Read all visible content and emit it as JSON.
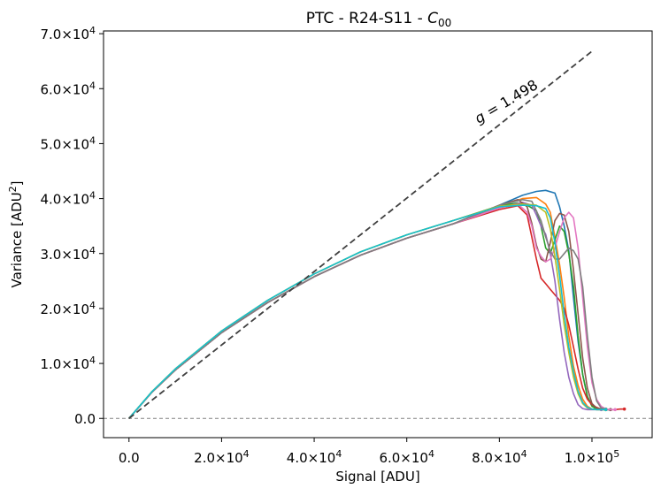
{
  "chart_data": {
    "type": "line",
    "title_parts": {
      "prefix": "PTC - R24-S11 - ",
      "var": "C",
      "sub": "00"
    },
    "xlabel": "Signal [ADU]",
    "ylabel_parts": {
      "prefix": "Variance [ADU",
      "sup": "2",
      "suffix": "]"
    },
    "xlim": [
      -5500,
      113000
    ],
    "ylim": [
      -3500,
      70500
    ],
    "x_ticks": [
      {
        "value": 0,
        "mant": "0.0",
        "exp": ""
      },
      {
        "value": 20000,
        "mant": "2.0×10",
        "exp": "4"
      },
      {
        "value": 40000,
        "mant": "4.0×10",
        "exp": "4"
      },
      {
        "value": 60000,
        "mant": "6.0×10",
        "exp": "4"
      },
      {
        "value": 80000,
        "mant": "8.0×10",
        "exp": "4"
      },
      {
        "value": 100000,
        "mant": "1.0×10",
        "exp": "5"
      }
    ],
    "y_ticks": [
      {
        "value": 0,
        "mant": "0.0",
        "exp": ""
      },
      {
        "value": 10000,
        "mant": "1.0×10",
        "exp": "4"
      },
      {
        "value": 20000,
        "mant": "2.0×10",
        "exp": "4"
      },
      {
        "value": 30000,
        "mant": "3.0×10",
        "exp": "4"
      },
      {
        "value": 40000,
        "mant": "4.0×10",
        "exp": "4"
      },
      {
        "value": 50000,
        "mant": "5.0×10",
        "exp": "4"
      },
      {
        "value": 60000,
        "mant": "6.0×10",
        "exp": "4"
      },
      {
        "value": 70000,
        "mant": "7.0×10",
        "exp": "4"
      }
    ],
    "reference_line": {
      "x": [
        0,
        100000
      ],
      "y": [
        0,
        66800
      ],
      "color": "#404040",
      "style": "dashed"
    },
    "zero_line": {
      "y": 0,
      "color": "#808080",
      "style": "dashed"
    },
    "annotation": {
      "var": "g",
      "text": " = 1.498",
      "x": 75500,
      "y": 53600,
      "rotation_deg": -31
    },
    "grid": false,
    "series": [
      {
        "color": "#1f77b4",
        "x": [
          0,
          5000,
          10000,
          20000,
          30000,
          40000,
          50000,
          60000,
          70000,
          80000,
          85000,
          88000,
          90000,
          92000,
          93000,
          94000,
          95000,
          96000,
          97000,
          98000,
          99000,
          100000,
          101000,
          102000,
          103000,
          104000
        ],
        "y": [
          0,
          4800,
          8800,
          15600,
          21100,
          25800,
          29700,
          32800,
          35400,
          38800,
          40600,
          41300,
          41500,
          41000,
          38500,
          35000,
          30500,
          22000,
          14000,
          8000,
          4000,
          2300,
          1700,
          1600,
          1600,
          1600
        ]
      },
      {
        "color": "#ff7f0e",
        "x": [
          0,
          5000,
          10000,
          20000,
          30000,
          40000,
          50000,
          60000,
          70000,
          80000,
          85000,
          88000,
          90000,
          91000,
          92000,
          93000,
          94000,
          95000,
          96000,
          97000,
          98000,
          99000,
          100000,
          101000,
          102000,
          103000
        ],
        "y": [
          0,
          4800,
          8800,
          15600,
          21100,
          25800,
          29700,
          32800,
          35400,
          38600,
          40000,
          40200,
          39000,
          37500,
          33000,
          28000,
          22000,
          15000,
          9500,
          6000,
          3500,
          2200,
          1700,
          1600,
          1600,
          1600
        ]
      },
      {
        "color": "#2ca02c",
        "x": [
          0,
          5000,
          10000,
          20000,
          30000,
          40000,
          50000,
          60000,
          70000,
          80000,
          84000,
          86000,
          88000,
          89000,
          90000,
          91000,
          92000,
          93000,
          94000,
          95000,
          96000,
          97000,
          98000,
          99000,
          100000,
          101000,
          102000,
          103000
        ],
        "y": [
          0,
          4900,
          9000,
          15900,
          21500,
          26300,
          30300,
          33400,
          36000,
          38700,
          39200,
          38800,
          37800,
          35000,
          31000,
          30000,
          32500,
          35000,
          34000,
          30000,
          24000,
          15000,
          8000,
          4000,
          2200,
          1700,
          1600,
          1600
        ]
      },
      {
        "color": "#d62728",
        "x": [
          0,
          5000,
          10000,
          20000,
          30000,
          40000,
          50000,
          60000,
          70000,
          80000,
          84000,
          86000,
          87000,
          88000,
          89000,
          90000,
          91000,
          92000,
          93000,
          94000,
          95000,
          96000,
          97000,
          98000,
          99000,
          100000,
          101000,
          102000,
          103000,
          104000,
          105000,
          106000,
          107000
        ],
        "y": [
          0,
          4800,
          8800,
          15600,
          21100,
          25800,
          29700,
          32800,
          35400,
          38000,
          38700,
          37000,
          33000,
          29000,
          25500,
          24500,
          23500,
          22500,
          21500,
          20000,
          17000,
          13000,
          9000,
          5500,
          3500,
          2500,
          2000,
          1700,
          1600,
          1600,
          1600,
          1700,
          1700
        ]
      },
      {
        "color": "#9467bd",
        "x": [
          0,
          5000,
          10000,
          20000,
          30000,
          40000,
          50000,
          60000,
          70000,
          80000,
          85000,
          87000,
          88000,
          89000,
          90000,
          91000,
          92000,
          93000,
          94000,
          95000,
          96000,
          97000,
          98000,
          99000,
          100000,
          101000,
          102000
        ],
        "y": [
          0,
          4800,
          8800,
          15600,
          21100,
          25800,
          29700,
          32800,
          35400,
          38300,
          39300,
          38800,
          37000,
          35000,
          33500,
          30000,
          25000,
          18000,
          12000,
          7500,
          4500,
          2500,
          1800,
          1600,
          1600,
          1600,
          1600
        ]
      },
      {
        "color": "#8c564b",
        "x": [
          0,
          5000,
          10000,
          20000,
          30000,
          40000,
          50000,
          60000,
          70000,
          80000,
          84000,
          86000,
          87000,
          88000,
          89000,
          90000,
          91000,
          92000,
          93000,
          94000,
          95000,
          96000,
          97000,
          98000,
          99000,
          100000,
          101000,
          102000,
          103000,
          104000
        ],
        "y": [
          0,
          4800,
          8800,
          15600,
          21100,
          25800,
          29700,
          32800,
          35400,
          38800,
          39800,
          38500,
          35500,
          31500,
          29000,
          28500,
          32000,
          36000,
          37300,
          37000,
          34000,
          27000,
          19000,
          11000,
          5500,
          2700,
          1900,
          1700,
          1600,
          1600
        ]
      },
      {
        "color": "#e377c2",
        "x": [
          0,
          5000,
          10000,
          20000,
          30000,
          40000,
          50000,
          60000,
          70000,
          80000,
          84000,
          86000,
          87000,
          88000,
          89000,
          90000,
          91000,
          92000,
          93000,
          94000,
          95000,
          96000,
          97000,
          98000,
          99000,
          100000,
          101000,
          102000,
          103000,
          104000,
          105000
        ],
        "y": [
          0,
          4800,
          8800,
          15600,
          21100,
          25800,
          29700,
          32800,
          35400,
          38300,
          39000,
          37500,
          35000,
          31000,
          29500,
          28500,
          29000,
          31000,
          34000,
          36500,
          37500,
          36500,
          31000,
          22000,
          13000,
          6500,
          3500,
          2200,
          1700,
          1600,
          1600
        ]
      },
      {
        "color": "#7f7f7f",
        "x": [
          0,
          5000,
          10000,
          20000,
          30000,
          40000,
          50000,
          60000,
          70000,
          80000,
          85000,
          87000,
          89000,
          90000,
          91000,
          92000,
          93000,
          94000,
          95000,
          96000,
          97000,
          98000,
          99000,
          100000,
          101000,
          102000,
          103000
        ],
        "y": [
          0,
          4800,
          8800,
          15600,
          21100,
          25800,
          29700,
          32800,
          35400,
          38800,
          39800,
          39500,
          36000,
          33000,
          30500,
          29000,
          29000,
          30000,
          31000,
          30500,
          29000,
          24000,
          15000,
          7500,
          3200,
          1900,
          1700
        ]
      },
      {
        "color": "#bcbd22",
        "x": [
          0,
          5000,
          10000,
          20000,
          30000,
          40000,
          50000,
          60000,
          70000,
          80000,
          85000,
          88000,
          90000,
          91000,
          92000,
          93000,
          94000,
          95000,
          96000,
          97000,
          98000,
          99000,
          100000,
          101000,
          102000,
          103000
        ],
        "y": [
          0,
          4900,
          9000,
          15900,
          21500,
          26300,
          30300,
          33400,
          36000,
          38600,
          39000,
          38800,
          37500,
          34500,
          29500,
          23500,
          17000,
          12000,
          7500,
          4500,
          2700,
          1900,
          1700,
          1600,
          1600,
          1600
        ]
      },
      {
        "color": "#17becf",
        "x": [
          0,
          5000,
          10000,
          20000,
          30000,
          40000,
          50000,
          60000,
          70000,
          80000,
          85000,
          88000,
          90000,
          91000,
          92000,
          93000,
          94000,
          95000,
          96000,
          97000,
          98000,
          99000,
          100000,
          101000,
          102000,
          103000
        ],
        "y": [
          0,
          4900,
          9000,
          15900,
          21500,
          26300,
          30300,
          33400,
          36000,
          38500,
          38800,
          38700,
          38200,
          36500,
          32000,
          26000,
          19000,
          13000,
          8500,
          5000,
          2900,
          2000,
          1700,
          1600,
          1600,
          1600
        ]
      }
    ]
  }
}
